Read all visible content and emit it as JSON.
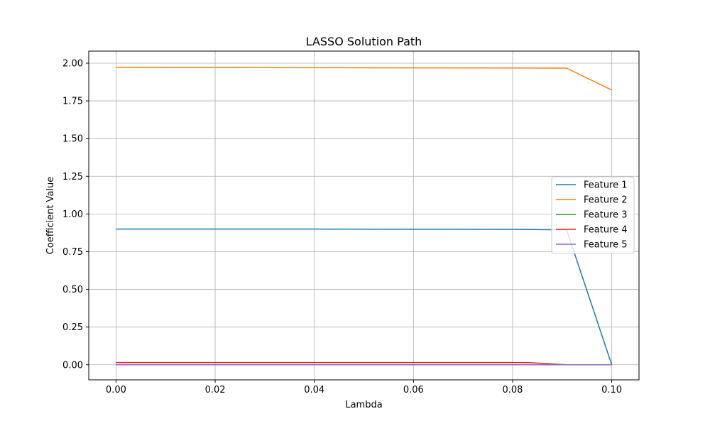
{
  "chart_data": {
    "type": "line",
    "title": "LASSO Solution Path",
    "xlabel": "Lambda",
    "ylabel": "Coefficient Value",
    "xlim": [
      -0.0055,
      0.1055
    ],
    "ylim": [
      -0.1,
      2.08
    ],
    "xticks": [
      0.0,
      0.02,
      0.04,
      0.06,
      0.08,
      0.1
    ],
    "xtick_labels": [
      "0.00",
      "0.02",
      "0.04",
      "0.06",
      "0.08",
      "0.10"
    ],
    "yticks": [
      0.0,
      0.25,
      0.5,
      0.75,
      1.0,
      1.25,
      1.5,
      1.75,
      2.0
    ],
    "ytick_labels": [
      "0.00",
      "0.25",
      "0.50",
      "0.75",
      "1.00",
      "1.25",
      "1.50",
      "1.75",
      "2.00"
    ],
    "grid": true,
    "legend_position": "center-right",
    "series": [
      {
        "name": "Feature 1",
        "color": "#1f77b4",
        "x": [
          0.0,
          0.02,
          0.04,
          0.06,
          0.08,
          0.0909,
          0.1
        ],
        "y": [
          0.9,
          0.9,
          0.9,
          0.899,
          0.898,
          0.895,
          0.0
        ]
      },
      {
        "name": "Feature 2",
        "color": "#ff7f0e",
        "x": [
          0.0,
          0.02,
          0.04,
          0.06,
          0.08,
          0.0909,
          0.1
        ],
        "y": [
          1.972,
          1.971,
          1.97,
          1.969,
          1.968,
          1.967,
          1.822
        ]
      },
      {
        "name": "Feature 3",
        "color": "#2ca02c",
        "x": [
          0.0,
          0.02,
          0.04,
          0.06,
          0.08,
          0.0909,
          0.1
        ],
        "y": [
          0.0,
          0.0,
          0.0,
          0.0,
          0.0,
          0.0,
          0.0
        ]
      },
      {
        "name": "Feature 4",
        "color": "#d62728",
        "x": [
          0.0,
          0.02,
          0.04,
          0.06,
          0.08,
          0.0833,
          0.0909,
          0.1
        ],
        "y": [
          0.015,
          0.015,
          0.015,
          0.015,
          0.015,
          0.014,
          0.0,
          0.0
        ]
      },
      {
        "name": "Feature 5",
        "color": "#9467bd",
        "x": [
          0.0,
          0.02,
          0.04,
          0.06,
          0.08,
          0.0909,
          0.1
        ],
        "y": [
          0.0,
          0.0,
          0.0,
          0.0,
          0.0,
          0.0,
          0.0
        ]
      }
    ]
  }
}
